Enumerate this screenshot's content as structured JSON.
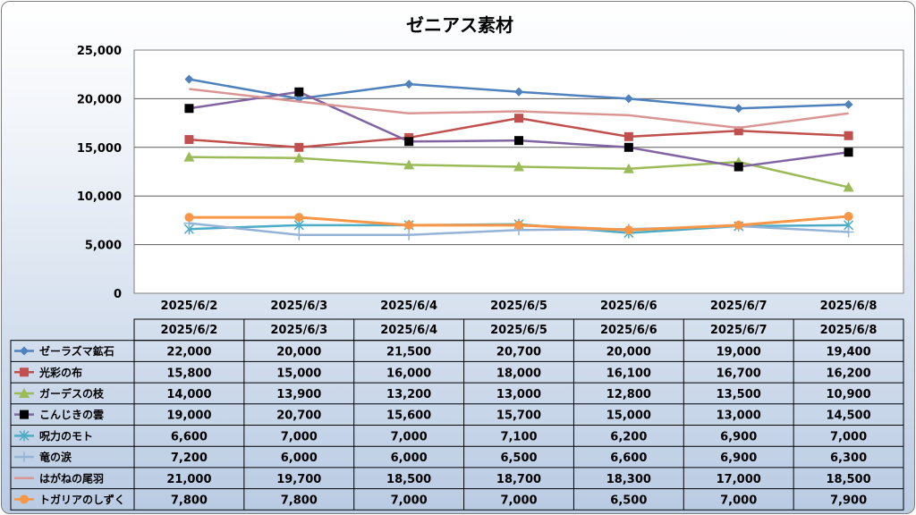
{
  "chart_data": {
    "type": "line",
    "title": "ゼニアス素材",
    "categories": [
      "2025/6/2",
      "2025/6/3",
      "2025/6/4",
      "2025/6/5",
      "2025/6/6",
      "2025/6/7",
      "2025/6/8"
    ],
    "ylim": [
      0,
      25000
    ],
    "yticks": [
      "0",
      "5,000",
      "10,000",
      "15,000",
      "20,000",
      "25,000"
    ],
    "grid": true,
    "legend": "data-table-below",
    "series": [
      {
        "name": "ゼーラズマ鉱石",
        "color": "#4f81bd",
        "marker": "diamond",
        "values": [
          22000,
          20000,
          21500,
          20700,
          20000,
          19000,
          19400
        ],
        "labels": [
          "22,000",
          "20,000",
          "21,500",
          "20,700",
          "20,000",
          "19,000",
          "19,400"
        ]
      },
      {
        "name": "光彩の布",
        "color": "#c0504d",
        "marker": "square",
        "values": [
          15800,
          15000,
          16000,
          18000,
          16100,
          16700,
          16200
        ],
        "labels": [
          "15,800",
          "15,000",
          "16,000",
          "18,000",
          "16,100",
          "16,700",
          "16,200"
        ]
      },
      {
        "name": "ガーデスの枝",
        "color": "#9bbb59",
        "marker": "triangle",
        "values": [
          14000,
          13900,
          13200,
          13000,
          12800,
          13500,
          10900
        ],
        "labels": [
          "14,000",
          "13,900",
          "13,200",
          "13,000",
          "12,800",
          "13,500",
          "10,900"
        ]
      },
      {
        "name": "こんじきの雲",
        "color": "#8064a2",
        "marker": "black-square",
        "values": [
          19000,
          20700,
          15600,
          15700,
          15000,
          13000,
          14500
        ],
        "labels": [
          "19,000",
          "20,700",
          "15,600",
          "15,700",
          "15,000",
          "13,000",
          "14,500"
        ]
      },
      {
        "name": "呪力のモト",
        "color": "#4bacc6",
        "marker": "star",
        "values": [
          6600,
          7000,
          7000,
          7100,
          6200,
          6900,
          7000
        ],
        "labels": [
          "6,600",
          "7,000",
          "7,000",
          "7,100",
          "6,200",
          "6,900",
          "7,000"
        ]
      },
      {
        "name": "竜の涙",
        "color": "#95b3d7",
        "marker": "plus",
        "values": [
          7200,
          6000,
          6000,
          6500,
          6600,
          6900,
          6300
        ],
        "labels": [
          "7,200",
          "6,000",
          "6,000",
          "6,500",
          "6,600",
          "6,900",
          "6,300"
        ]
      },
      {
        "name": "はがねの尾羽",
        "color": "#d99694",
        "marker": "none",
        "values": [
          21000,
          19700,
          18500,
          18700,
          18300,
          17000,
          18500
        ],
        "labels": [
          "21,000",
          "19,700",
          "18,500",
          "18,700",
          "18,300",
          "17,000",
          "18,500"
        ]
      },
      {
        "name": "トガリアのしずく",
        "color": "#f79646",
        "marker": "circle",
        "values": [
          7800,
          7800,
          7000,
          7000,
          6500,
          7000,
          7900
        ],
        "labels": [
          "7,800",
          "7,800",
          "7,000",
          "7,000",
          "6,500",
          "7,000",
          "7,900"
        ]
      }
    ]
  }
}
